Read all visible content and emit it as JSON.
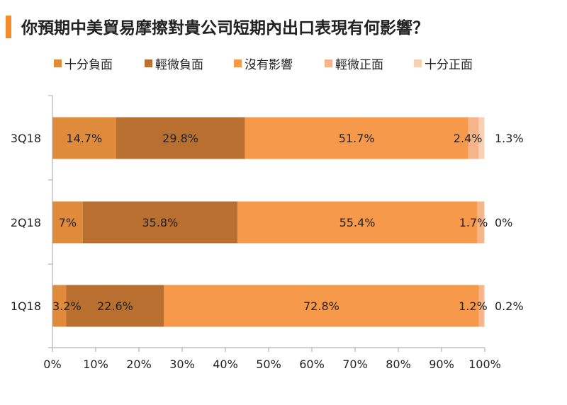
{
  "title": "你預期中美貿易摩擦對貴公司短期內出口表現有何影響？",
  "colors": {
    "accent_bar": "#F28C28",
    "axis": "#A6A6A6"
  },
  "chart_data": {
    "type": "bar",
    "orientation": "horizontal",
    "stacked": true,
    "title": "你預期中美貿易摩擦對貴公司短期內出口表現有何影響？",
    "xlabel": "",
    "ylabel": "",
    "xlim": [
      0,
      100
    ],
    "x_ticks": [
      "0%",
      "10%",
      "20%",
      "30%",
      "40%",
      "50%",
      "60%",
      "70%",
      "80%",
      "90%",
      "100%"
    ],
    "legend_position": "top",
    "grid": false,
    "categories": [
      "3Q18",
      "2Q18",
      "1Q18"
    ],
    "series": [
      {
        "name": "十分負面",
        "color": "#E08A3C",
        "values": [
          14.7,
          7,
          3.2
        ],
        "labels": [
          "14.7%",
          "7%",
          "3.2%"
        ]
      },
      {
        "name": "輕微負面",
        "color": "#B86F30",
        "values": [
          29.8,
          35.8,
          22.6
        ],
        "labels": [
          "29.8%",
          "35.8%",
          "22.6%"
        ]
      },
      {
        "name": "沒有影響",
        "color": "#F7994A",
        "values": [
          51.7,
          55.4,
          72.8
        ],
        "labels": [
          "51.7%",
          "55.4%",
          "72.8%"
        ]
      },
      {
        "name": "輕微正面",
        "color": "#F5B48A",
        "values": [
          2.4,
          1.7,
          1.2
        ],
        "labels": [
          "2.4%",
          "1.7%",
          "1.2%"
        ]
      },
      {
        "name": "十分正面",
        "color": "#FAD0B4",
        "values": [
          1.3,
          0,
          0.2
        ],
        "labels": [
          "1.3%",
          "0%",
          "0.2%"
        ]
      }
    ]
  }
}
